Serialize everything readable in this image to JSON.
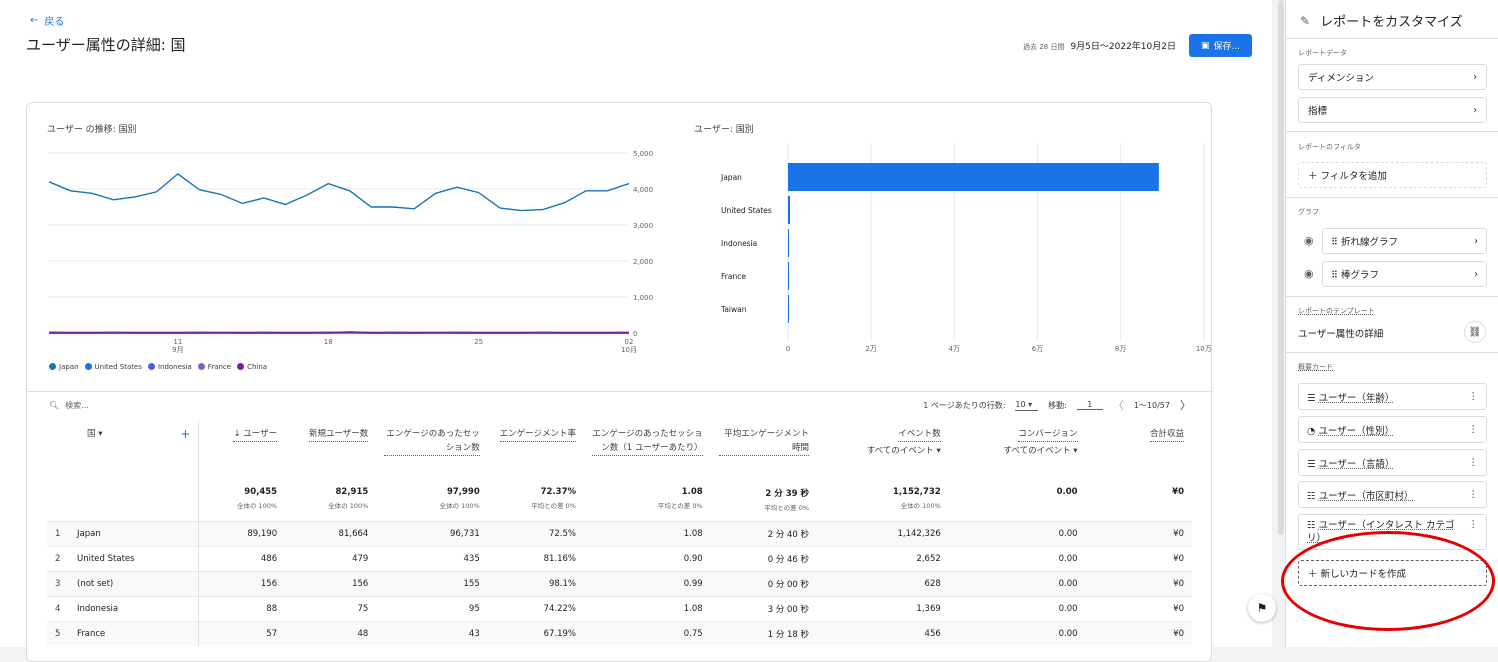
{
  "header": {
    "back_label": "戻る",
    "page_title": "ユーザー属性の詳細: 国",
    "date_range_label": "過去 28 日間",
    "date_range": "9月5日～2022年10月2日",
    "save_label": "保存..."
  },
  "line_chart": {
    "title": "ユーザー の推移: 国別",
    "y_ticks": [
      "5,000",
      "4,000",
      "3,000",
      "2,000",
      "1,000",
      "0"
    ],
    "x_ticks": [
      {
        "d": "11",
        "m": "9月"
      },
      {
        "d": "18",
        "m": ""
      },
      {
        "d": "25",
        "m": ""
      },
      {
        "d": "02",
        "m": "10月"
      }
    ],
    "legend": [
      {
        "name": "Japan",
        "color": "#1976b3"
      },
      {
        "name": "United States",
        "color": "#1a73e8"
      },
      {
        "name": "Indonesia",
        "color": "#4d5ee0"
      },
      {
        "name": "France",
        "color": "#7b5cd6"
      },
      {
        "name": "China",
        "color": "#7b1fa2"
      }
    ]
  },
  "bar_chart": {
    "title": "ユーザー: 国別",
    "x_ticks": [
      "0",
      "2万",
      "4万",
      "6万",
      "8万",
      "10万"
    ]
  },
  "chart_data": [
    {
      "type": "line",
      "title": "ユーザー の推移: 国別",
      "x": [
        "9/5",
        "9/6",
        "9/7",
        "9/8",
        "9/9",
        "9/10",
        "9/11",
        "9/12",
        "9/13",
        "9/14",
        "9/15",
        "9/16",
        "9/17",
        "9/18",
        "9/19",
        "9/20",
        "9/21",
        "9/22",
        "9/23",
        "9/24",
        "9/25",
        "9/26",
        "9/27",
        "9/28",
        "9/29",
        "9/30",
        "10/1",
        "10/2"
      ],
      "ylim": [
        0,
        5000
      ],
      "series": [
        {
          "name": "Japan",
          "values": [
            4200,
            3950,
            3880,
            3700,
            3780,
            3920,
            4420,
            3980,
            3850,
            3600,
            3750,
            3570,
            3830,
            4150,
            3950,
            3500,
            3500,
            3450,
            3880,
            4050,
            3900,
            3470,
            3400,
            3430,
            3620,
            3950,
            3950,
            4150
          ]
        },
        {
          "name": "United States",
          "values": [
            18,
            17,
            16,
            18,
            17,
            16,
            17,
            18,
            16,
            17,
            18,
            17,
            16,
            18,
            17,
            17,
            18,
            16,
            17,
            18,
            17,
            16,
            17,
            18,
            17,
            16,
            17,
            18
          ]
        },
        {
          "name": "Indonesia",
          "values": [
            3,
            3,
            3,
            4,
            3,
            3,
            3,
            3,
            4,
            3,
            3,
            3,
            3,
            4,
            3,
            3,
            3,
            3,
            4,
            3,
            3,
            3,
            3,
            4,
            3,
            3,
            3,
            3
          ]
        },
        {
          "name": "France",
          "values": [
            2,
            2,
            2,
            2,
            2,
            2,
            2,
            2,
            2,
            2,
            2,
            2,
            2,
            2,
            2,
            2,
            2,
            2,
            2,
            2,
            2,
            2,
            2,
            2,
            2,
            2,
            2,
            2
          ]
        },
        {
          "name": "China",
          "values": [
            1,
            1,
            1,
            1,
            1,
            1,
            1,
            1,
            1,
            1,
            1,
            1,
            1,
            1,
            30,
            1,
            1,
            1,
            1,
            1,
            1,
            1,
            1,
            1,
            1,
            1,
            1,
            1
          ]
        }
      ]
    },
    {
      "type": "bar",
      "title": "ユーザー: 国別",
      "categories": [
        "Japan",
        "United States",
        "Indonesia",
        "France",
        "Taiwan"
      ],
      "values": [
        89190,
        486,
        88,
        57,
        40
      ],
      "xlim": [
        0,
        100000
      ],
      "orientation": "horizontal"
    }
  ],
  "table": {
    "search_placeholder": "検索...",
    "rows_per_page_label": "1 ページあたりの行数:",
    "rows_per_page": "10",
    "goto_label": "移動:",
    "goto_value": "1",
    "page_range": "1～10/57",
    "dim_header": "国",
    "columns": [
      {
        "label": "↓ ユーザー",
        "sub": ""
      },
      {
        "label": "新規ユーザー数",
        "sub": ""
      },
      {
        "label": "エンゲージのあったセッション数",
        "sub": ""
      },
      {
        "label": "エンゲージメント率",
        "sub": ""
      },
      {
        "label": "エンゲージのあったセッション数（1 ユーザーあたり）",
        "sub": ""
      },
      {
        "label": "平均エンゲージメント時間",
        "sub": ""
      },
      {
        "label": "イベント数",
        "sub": "すべてのイベント"
      },
      {
        "label": "コンバージョン",
        "sub": "すべてのイベント"
      },
      {
        "label": "合計収益",
        "sub": ""
      }
    ],
    "totals": [
      {
        "v": "90,455",
        "s": "全体の 100%"
      },
      {
        "v": "82,915",
        "s": "全体の 100%"
      },
      {
        "v": "97,990",
        "s": "全体の 100%"
      },
      {
        "v": "72.37%",
        "s": "平均との差 0%"
      },
      {
        "v": "1.08",
        "s": "平均との差 0%"
      },
      {
        "v": "2 分 39 秒",
        "s": "平均との差 0%"
      },
      {
        "v": "1,152,732",
        "s": "全体の 100%"
      },
      {
        "v": "0.00",
        "s": ""
      },
      {
        "v": "¥0",
        "s": ""
      }
    ],
    "rows": [
      {
        "n": "1",
        "name": "Japan",
        "c": [
          "89,190",
          "81,664",
          "96,731",
          "72.5%",
          "1.08",
          "2 分 40 秒",
          "1,142,326",
          "0.00",
          "¥0"
        ]
      },
      {
        "n": "2",
        "name": "United States",
        "c": [
          "486",
          "479",
          "435",
          "81.16%",
          "0.90",
          "0 分 46 秒",
          "2,652",
          "0.00",
          "¥0"
        ]
      },
      {
        "n": "3",
        "name": "(not set)",
        "c": [
          "156",
          "156",
          "155",
          "98.1%",
          "0.99",
          "0 分 00 秒",
          "628",
          "0.00",
          "¥0"
        ]
      },
      {
        "n": "4",
        "name": "Indonesia",
        "c": [
          "88",
          "75",
          "95",
          "74.22%",
          "1.08",
          "3 分 00 秒",
          "1,369",
          "0.00",
          "¥0"
        ]
      },
      {
        "n": "5",
        "name": "France",
        "c": [
          "57",
          "48",
          "43",
          "67.19%",
          "0.75",
          "1 分 18 秒",
          "456",
          "0.00",
          "¥0"
        ]
      }
    ]
  },
  "panel": {
    "title": "レポートをカスタマイズ",
    "sec_data": "レポートデータ",
    "dimension": "ディメンション",
    "metric": "指標",
    "sec_filter": "レポートのフィルタ",
    "add_filter": "＋ フィルタを追加",
    "sec_graph": "グラフ",
    "graph_line": "折れ線グラフ",
    "graph_bar": "棒グラフ",
    "sec_template": "レポートのテンプレート",
    "template_name": "ユーザー属性の詳細",
    "sec_cards": "概要カード",
    "cards": [
      "ユーザー（年齢）",
      "ユーザー（性別）",
      "ユーザー（言語）",
      "ユーザー（市区町村）",
      "ユーザー（インタレスト カテゴリ）"
    ],
    "new_card": "＋ 新しいカードを作成"
  }
}
